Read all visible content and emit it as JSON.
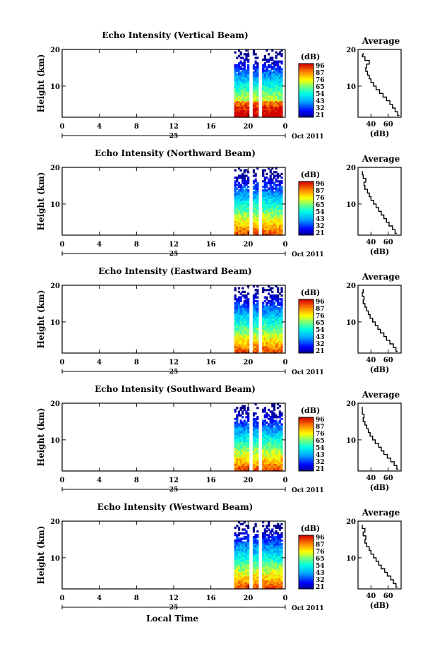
{
  "shared": {
    "ylabel": "Height (km)",
    "x_ticks": [
      "0",
      "4",
      "8",
      "12",
      "16",
      "20",
      "0"
    ],
    "day_label": "25",
    "month_label": "Oct 2011",
    "units_label": "(dB)",
    "colorbar_ticks": [
      "96",
      "87",
      "76",
      "65",
      "54",
      "43",
      "32",
      "21"
    ],
    "avg_title": "Average",
    "avg_xlabel": "(dB)",
    "bottom_xlabel": "Local Time"
  },
  "chart_data": [
    {
      "type": "heatmap",
      "title": "Echo Intensity (Vertical Beam)",
      "xlim": [
        0,
        24
      ],
      "ylim": [
        1.5,
        20
      ],
      "y_ticks": [
        "20",
        "10"
      ],
      "y_tick_values": [
        20,
        10
      ],
      "data_x_range": [
        18.5,
        23.6
      ],
      "gap_hours": [
        [
          20.05,
          20.4
        ],
        [
          21.05,
          21.4
        ]
      ],
      "colorbar": {
        "min": 21,
        "max": 96
      },
      "profile": {
        "xlim": [
          25,
          75
        ],
        "x_ticks": [
          "40",
          "60"
        ],
        "x_tick_values": [
          40,
          60
        ],
        "y_ticks": [
          "20",
          "10"
        ],
        "y_tick_values": [
          20,
          10
        ],
        "heights": [
          2.0,
          3.0,
          4.0,
          5.0,
          6.0,
          7.0,
          8.0,
          9.0,
          10.0,
          11.0,
          12.0,
          13.0,
          14.0,
          15.0,
          16.0,
          17.0,
          18.0,
          18.5,
          19.0
        ],
        "values": [
          73,
          71,
          68,
          65,
          62,
          58,
          54,
          50,
          46,
          43,
          40,
          38,
          36,
          34,
          35,
          38,
          33,
          30,
          31
        ]
      }
    },
    {
      "type": "heatmap",
      "title": "Echo Intensity (Northward Beam)",
      "xlim": [
        0,
        24
      ],
      "ylim": [
        1.5,
        20
      ],
      "y_ticks": [
        "20",
        "10"
      ],
      "y_tick_values": [
        20,
        10
      ],
      "data_x_range": [
        18.5,
        23.6
      ],
      "gap_hours": [
        [
          20.05,
          20.4
        ],
        [
          21.05,
          21.4
        ]
      ],
      "colorbar": {
        "min": 21,
        "max": 96
      },
      "profile": {
        "xlim": [
          25,
          75
        ],
        "x_ticks": [
          "40",
          "60"
        ],
        "x_tick_values": [
          40,
          60
        ],
        "y_ticks": [
          "20",
          "10"
        ],
        "y_tick_values": [
          20,
          10
        ],
        "heights": [
          2.0,
          3.0,
          4.0,
          5.0,
          6.0,
          7.0,
          8.0,
          9.0,
          10.0,
          11.0,
          12.0,
          13.0,
          14.0,
          15.0,
          16.0,
          17.0,
          18.0,
          19.0
        ],
        "values": [
          70,
          68,
          65,
          61,
          58,
          55,
          52,
          49,
          46,
          43,
          40,
          38,
          36,
          33,
          32,
          34,
          31,
          30
        ]
      }
    },
    {
      "type": "heatmap",
      "title": "Echo Intensity (Eastward Beam)",
      "xlim": [
        0,
        24
      ],
      "ylim": [
        1.5,
        20
      ],
      "y_ticks": [
        "20",
        "10"
      ],
      "y_tick_values": [
        20,
        10
      ],
      "data_x_range": [
        18.5,
        23.6
      ],
      "gap_hours": [
        [
          20.05,
          20.4
        ],
        [
          21.05,
          21.4
        ]
      ],
      "colorbar": {
        "min": 21,
        "max": 96
      },
      "profile": {
        "xlim": [
          25,
          75
        ],
        "x_ticks": [
          "40",
          "60"
        ],
        "x_tick_values": [
          40,
          60
        ],
        "y_ticks": [
          "20",
          "10"
        ],
        "y_tick_values": [
          20,
          10
        ],
        "heights": [
          2.0,
          3.0,
          4.0,
          5.0,
          6.0,
          7.0,
          8.0,
          9.0,
          10.0,
          11.0,
          12.0,
          13.0,
          14.0,
          15.0,
          16.0,
          17.0,
          18.0,
          19.0
        ],
        "values": [
          71,
          69,
          66,
          62,
          58,
          55,
          51,
          48,
          45,
          42,
          39,
          37,
          35,
          33,
          31,
          32,
          30,
          31
        ]
      }
    },
    {
      "type": "heatmap",
      "title": "Echo Intensity (Southward Beam)",
      "xlim": [
        0,
        24
      ],
      "ylim": [
        1.5,
        20
      ],
      "y_ticks": [
        "20",
        "10"
      ],
      "y_tick_values": [
        20,
        10
      ],
      "data_x_range": [
        18.5,
        23.6
      ],
      "gap_hours": [
        [
          20.05,
          20.4
        ],
        [
          21.05,
          21.4
        ]
      ],
      "colorbar": {
        "min": 21,
        "max": 96
      },
      "profile": {
        "xlim": [
          25,
          75
        ],
        "x_ticks": [
          "40",
          "60"
        ],
        "x_tick_values": [
          40,
          60
        ],
        "y_ticks": [
          "20",
          "10"
        ],
        "y_tick_values": [
          20,
          10
        ],
        "heights": [
          2.0,
          3.0,
          4.0,
          5.0,
          6.0,
          7.0,
          8.0,
          9.0,
          10.0,
          11.0,
          12.0,
          13.0,
          14.0,
          15.0,
          16.0,
          17.0,
          18.0,
          19.0
        ],
        "values": [
          72,
          70,
          67,
          63,
          59,
          55,
          52,
          49,
          45,
          42,
          39,
          37,
          35,
          33,
          31,
          32,
          30,
          30
        ]
      }
    },
    {
      "type": "heatmap",
      "title": "Echo Intensity (Westward Beam)",
      "xlim": [
        0,
        24
      ],
      "ylim": [
        1.5,
        20
      ],
      "y_ticks": [
        "20",
        "10"
      ],
      "y_tick_values": [
        20,
        10
      ],
      "data_x_range": [
        18.5,
        23.6
      ],
      "gap_hours": [
        [
          20.05,
          20.4
        ],
        [
          21.05,
          21.4
        ]
      ],
      "colorbar": {
        "min": 21,
        "max": 96
      },
      "profile": {
        "xlim": [
          25,
          75
        ],
        "x_ticks": [
          "40",
          "60"
        ],
        "x_tick_values": [
          40,
          60
        ],
        "y_ticks": [
          "20",
          "10"
        ],
        "y_tick_values": [
          20,
          10
        ],
        "heights": [
          2.0,
          3.0,
          4.0,
          5.0,
          6.0,
          7.0,
          8.0,
          9.0,
          10.0,
          11.0,
          12.0,
          13.0,
          14.0,
          15.0,
          16.0,
          17.0,
          18.0,
          19.0
        ],
        "values": [
          71,
          69,
          66,
          63,
          59,
          56,
          52,
          49,
          46,
          43,
          40,
          38,
          35,
          33,
          34,
          31,
          33,
          30
        ]
      }
    }
  ]
}
